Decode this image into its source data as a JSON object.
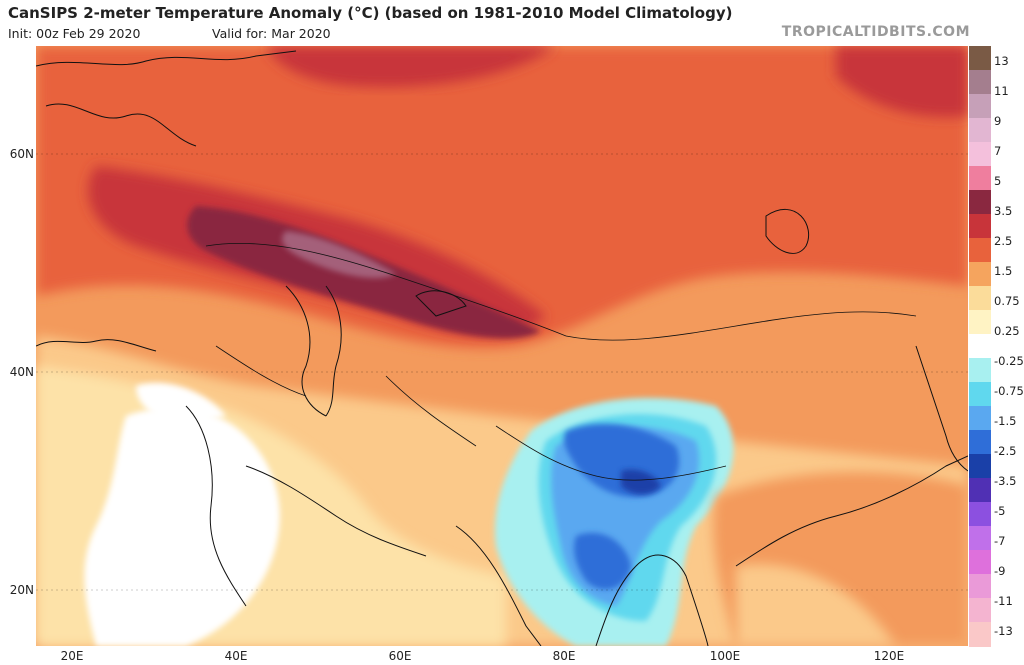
{
  "header": {
    "title": "CanSIPS 2-meter Temperature Anomaly (°C) (based on 1981-2010 Model Climatology)",
    "init": "Init: 00z Feb 29 2020",
    "valid": "Valid for: Mar 2020",
    "site": "TROPICALTIDBITS.COM"
  },
  "map": {
    "lat_labels": [
      "60N",
      "40N",
      "20N"
    ],
    "lon_labels": [
      "20E",
      "40E",
      "60E",
      "80E",
      "100E",
      "120E"
    ]
  },
  "colorbar": {
    "labels": [
      "13",
      "11",
      "9",
      "7",
      "5",
      "3.5",
      "2.5",
      "1.5",
      "0.75",
      "0.25",
      "-0.25",
      "-0.75",
      "-1.5",
      "-2.5",
      "-3.5",
      "-5",
      "-7",
      "-9",
      "-11",
      "-13"
    ],
    "colors": [
      "#7a5a45",
      "#a47e8e",
      "#c6a0b8",
      "#e2b6d2",
      "#f4c0dc",
      "#ef7e9e",
      "#8a2840",
      "#c8343a",
      "#e8623c",
      "#f5a45e",
      "#fbdc9a",
      "#fff3c4",
      "#ffffff",
      "#a8f0f0",
      "#60d8ee",
      "#5aa8f0",
      "#2f6ed8",
      "#1a40a8",
      "#5030b4",
      "#8c50e0",
      "#c070ea",
      "#de70dc",
      "#ea9ad8",
      "#f4b4d0",
      "#fac8c8"
    ]
  }
}
